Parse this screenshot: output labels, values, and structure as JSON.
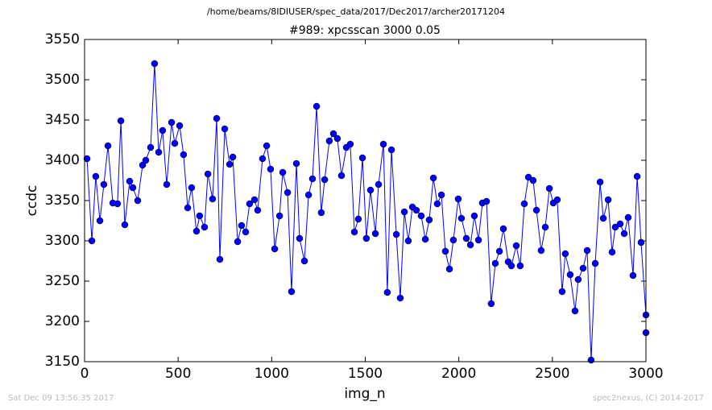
{
  "chart_data": {
    "type": "line",
    "suptitle": "/home/beams/8IDIUSER/spec_data/2017/Dec2017/archer20171204",
    "title": "#989: xpcsscan 3000 0.05",
    "xlabel": "img_n",
    "ylabel": "ccdc",
    "annotations": [
      "Sat Dec 09 13:56:35 2017",
      "spec2nexus, (C) 2014-2017"
    ],
    "xlim": [
      0,
      3000
    ],
    "ylim": [
      3150,
      3550
    ],
    "xticks": [
      0,
      500,
      1000,
      1500,
      2000,
      2500,
      3000
    ],
    "yticks": [
      3150,
      3200,
      3250,
      3300,
      3350,
      3400,
      3450,
      3500,
      3550
    ],
    "grid": false,
    "x": [
      13,
      39,
      60,
      82,
      103,
      125,
      151,
      176,
      194,
      215,
      241,
      258,
      284,
      310,
      327,
      353,
      374,
      396,
      417,
      439,
      465,
      482,
      508,
      529,
      551,
      572,
      598,
      615,
      641,
      659,
      684,
      706,
      723,
      749,
      775,
      792,
      818,
      839,
      861,
      882,
      908,
      925,
      951,
      973,
      994,
      1016,
      1042,
      1059,
      1085,
      1106,
      1132,
      1149,
      1175,
      1197,
      1218,
      1240,
      1265,
      1283,
      1308,
      1330,
      1351,
      1373,
      1399,
      1420,
      1442,
      1463,
      1485,
      1506,
      1528,
      1554,
      1571,
      1597,
      1618,
      1640,
      1666,
      1687,
      1709,
      1730,
      1752,
      1773,
      1799,
      1821,
      1842,
      1864,
      1885,
      1907,
      1928,
      1950,
      1971,
      1997,
      2014,
      2040,
      2062,
      2083,
      2105,
      2126,
      2148,
      2173,
      2195,
      2217,
      2238,
      2264,
      2281,
      2307,
      2328,
      2350,
      2372,
      2397,
      2415,
      2440,
      2462,
      2484,
      2505,
      2526,
      2552,
      2569,
      2595,
      2621,
      2638,
      2664,
      2686,
      2707,
      2729,
      2755,
      2772,
      2798,
      2819,
      2836,
      2862,
      2884,
      2905,
      2931,
      2953,
      2974,
      3000,
      3000
    ],
    "series": [
      {
        "name": "ccdc",
        "color": "#0000ff",
        "values": [
          3402,
          3300,
          3380,
          3325,
          3370,
          3418,
          3347,
          3346,
          3449,
          3320,
          3374,
          3366,
          3350,
          3394,
          3400,
          3416,
          3520,
          3410,
          3437,
          3370,
          3447,
          3421,
          3443,
          3407,
          3341,
          3366,
          3312,
          3331,
          3317,
          3383,
          3352,
          3452,
          3277,
          3439,
          3395,
          3404,
          3299,
          3319,
          3311,
          3346,
          3351,
          3338,
          3402,
          3418,
          3389,
          3290,
          3331,
          3385,
          3360,
          3237,
          3396,
          3303,
          3275,
          3357,
          3377,
          3467,
          3335,
          3376,
          3424,
          3433,
          3427,
          3381,
          3416,
          3420,
          3311,
          3327,
          3403,
          3303,
          3363,
          3309,
          3370,
          3420,
          3236,
          3413,
          3308,
          3229,
          3336,
          3300,
          3342,
          3338,
          3331,
          3302,
          3326,
          3378,
          3346,
          3357,
          3287,
          3265,
          3301,
          3352,
          3328,
          3303,
          3295,
          3331,
          3301,
          3347,
          3349,
          3222,
          3272,
          3287,
          3315,
          3274,
          3269,
          3294,
          3269,
          3346,
          3379,
          3375,
          3338,
          3288,
          3317,
          3365,
          3347,
          3351,
          3237,
          3284,
          3258,
          3213,
          3252,
          3266,
          3288,
          3152,
          3272,
          3373,
          3328,
          3351,
          3286,
          3317,
          3321,
          3309,
          3329,
          3257,
          3380,
          3298,
          3208,
          3186
        ]
      }
    ]
  }
}
